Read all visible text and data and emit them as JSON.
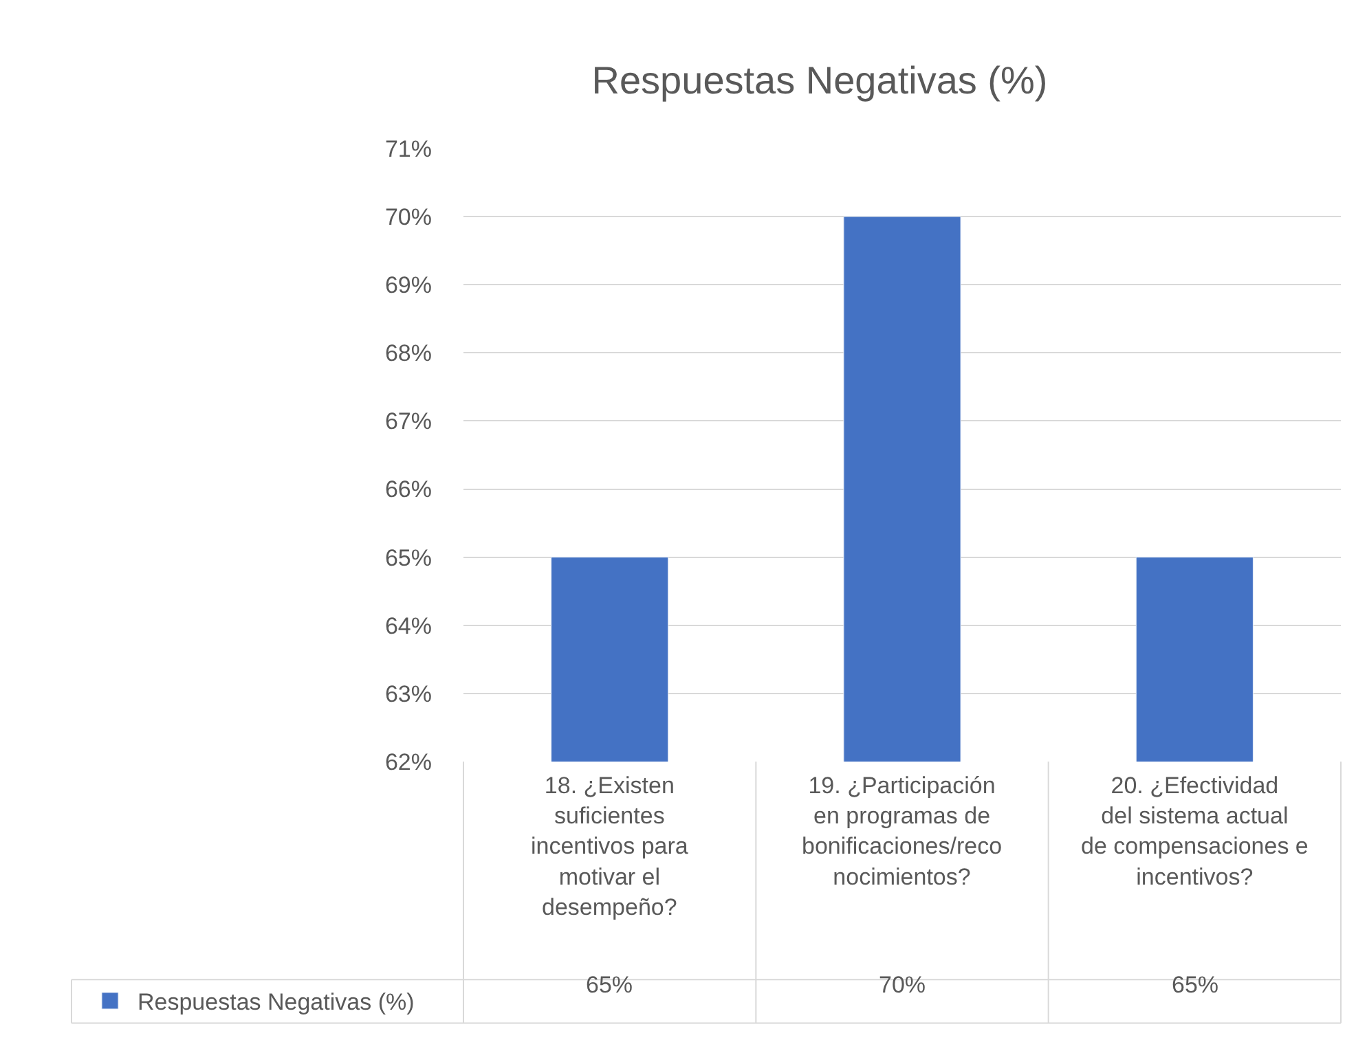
{
  "chart_data": {
    "type": "bar",
    "title": "Respuestas Negativas (%)",
    "categories": [
      "18. ¿Existen suficientes incentivos para motivar el desempeño?",
      "19. ¿Participación en programas de bonificaciones/reconocimientos?",
      "20. ¿Efectividad del sistema actual de compensaciones e incentivos?"
    ],
    "series": [
      {
        "name": "Respuestas Negativas (%)",
        "color": "#4472c4",
        "values": [
          65,
          70,
          65
        ],
        "value_labels": [
          "65%",
          "70%",
          "65%"
        ]
      }
    ],
    "ylim": [
      62,
      71
    ],
    "yticks": [
      {
        "value": 62,
        "label": "62%"
      },
      {
        "value": 63,
        "label": "63%"
      },
      {
        "value": 64,
        "label": "64%"
      },
      {
        "value": 65,
        "label": "65%"
      },
      {
        "value": 66,
        "label": "66%"
      },
      {
        "value": 67,
        "label": "67%"
      },
      {
        "value": 68,
        "label": "68%"
      },
      {
        "value": 69,
        "label": "69%"
      },
      {
        "value": 70,
        "label": "70%"
      },
      {
        "value": 71,
        "label": "71%"
      }
    ],
    "grid": "y",
    "legend": "bottom left"
  }
}
